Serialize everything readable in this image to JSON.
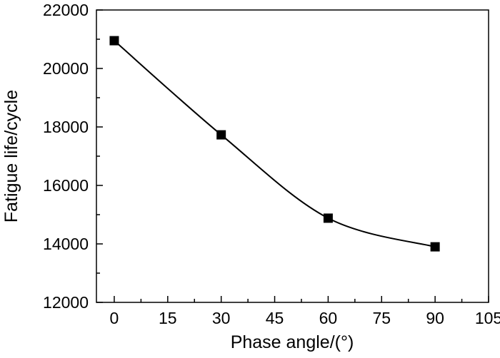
{
  "chart_data": {
    "type": "line",
    "title": "",
    "xlabel": "Phase angle/(°)",
    "ylabel": "Fatigue life/cycle",
    "xlim": [
      -5,
      105
    ],
    "ylim": [
      12000,
      22000
    ],
    "xticks": [
      0,
      15,
      30,
      45,
      60,
      75,
      90,
      105
    ],
    "yticks": [
      12000,
      14000,
      16000,
      18000,
      20000,
      22000
    ],
    "grid": false,
    "legend": "none",
    "series": [
      {
        "marker": "square",
        "line": "smooth",
        "color": "#000000",
        "x": [
          0,
          30,
          60,
          90
        ],
        "y": [
          20950,
          17730,
          14880,
          13900
        ]
      }
    ]
  }
}
